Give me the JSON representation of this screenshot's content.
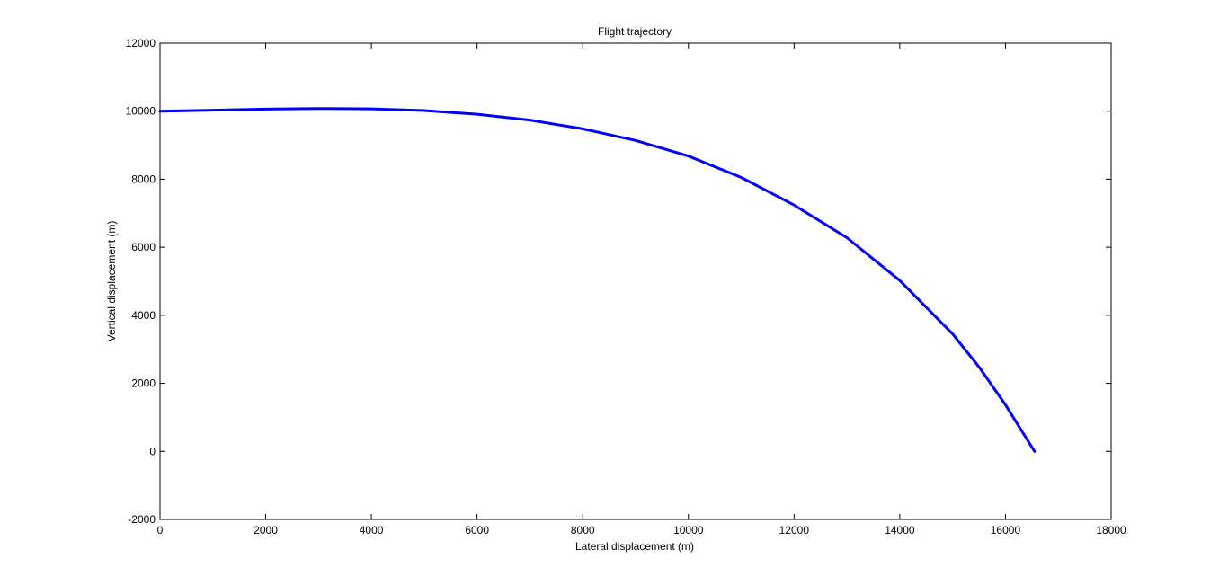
{
  "chart_data": {
    "type": "line",
    "title": "Flight trajectory",
    "xlabel": "Lateral displacement (m)",
    "ylabel": "Vertical displacement (m)",
    "xlim": [
      0,
      18000
    ],
    "ylim": [
      -2000,
      12000
    ],
    "xticks": [
      0,
      2000,
      4000,
      6000,
      8000,
      10000,
      12000,
      14000,
      16000,
      18000
    ],
    "yticks": [
      -2000,
      0,
      2000,
      4000,
      6000,
      8000,
      10000,
      12000
    ],
    "grid": false,
    "series": [
      {
        "color": "#0000ff",
        "x": [
          0,
          1000,
          2000,
          3000,
          4000,
          5000,
          6000,
          7000,
          8000,
          9000,
          10000,
          11000,
          12000,
          13000,
          14000,
          15000,
          15500,
          16000,
          16300,
          16550
        ],
        "y": [
          10000,
          10030,
          10060,
          10080,
          10070,
          10020,
          9910,
          9740,
          9480,
          9140,
          8680,
          8050,
          7240,
          6280,
          5020,
          3450,
          2480,
          1370,
          620,
          0
        ]
      }
    ]
  }
}
